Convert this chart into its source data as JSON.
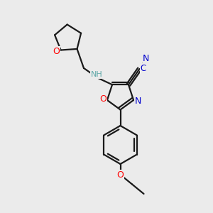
{
  "background_color": "#ebebeb",
  "bond_color": "#1a1a1a",
  "atom_colors": {
    "O": "#ff0000",
    "N": "#0000cd",
    "NH": "#5fa8a8",
    "default": "#1a1a1a"
  },
  "figsize": [
    3.0,
    3.0
  ],
  "dpi": 100
}
